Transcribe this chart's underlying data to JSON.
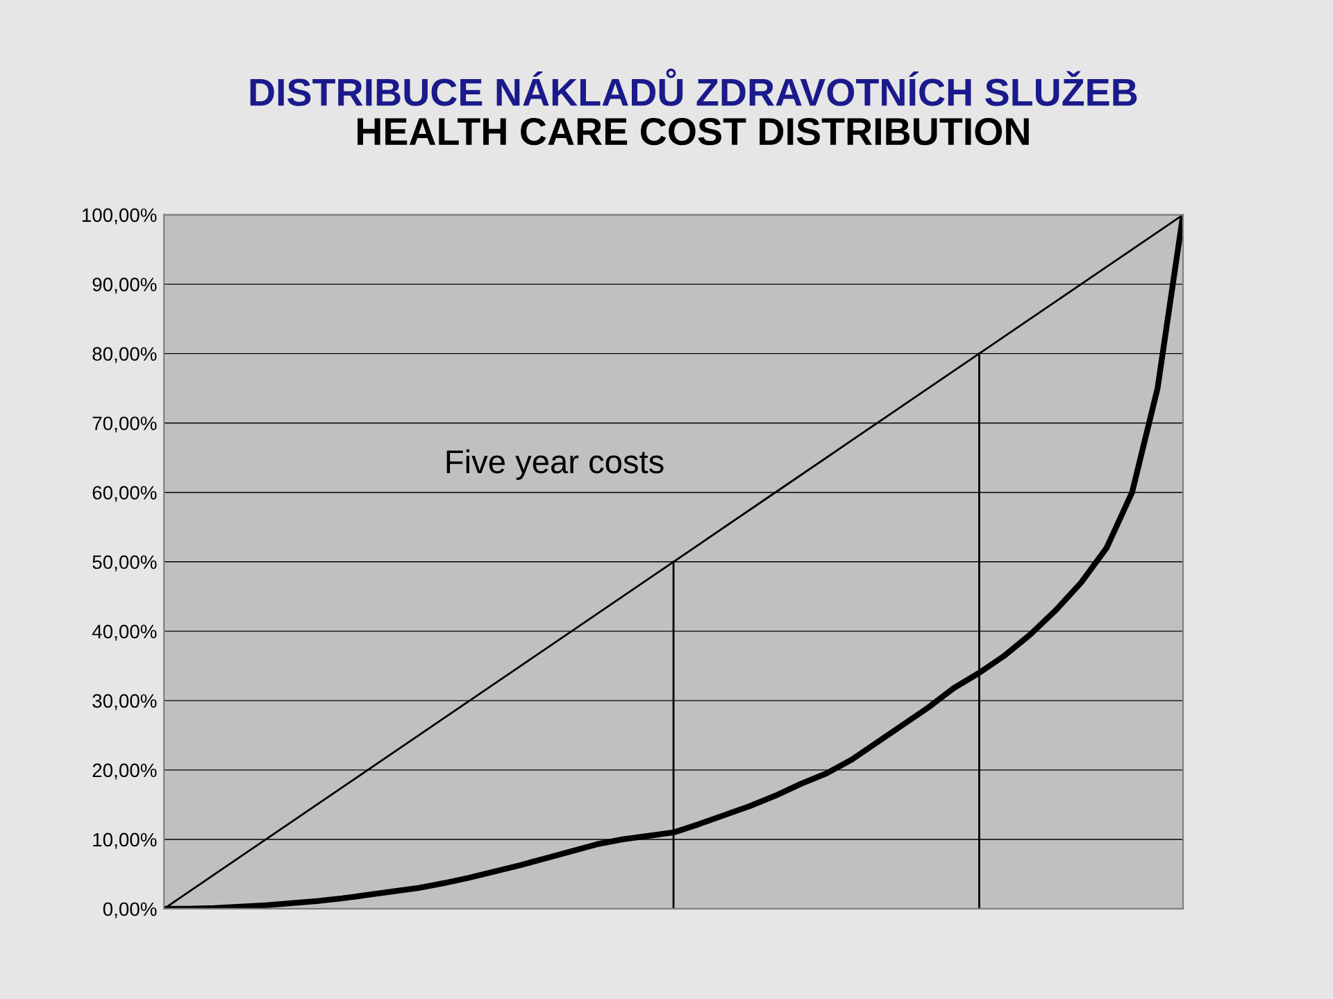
{
  "chart_data": {
    "type": "line",
    "title": "DISTRIBUCE NÁKLADŮ ZDRAVOTNÍCH SLUŽEB",
    "subtitle": "HEALTH CARE COST DISTRIBUTION",
    "annotations": [
      "Five year costs"
    ],
    "categories": [
      null,
      null,
      null,
      null,
      null,
      null,
      null,
      null,
      null,
      null,
      null,
      null,
      null,
      null,
      null,
      null,
      null,
      null,
      null,
      null,
      null,
      null,
      null,
      null,
      null,
      null,
      null,
      null,
      null,
      null,
      null,
      null,
      null,
      null,
      null,
      null,
      null,
      null,
      null,
      null,
      null
    ],
    "ylim": [
      0,
      100
    ],
    "yticks": [
      {
        "value": 0,
        "label": "0,00%"
      },
      {
        "value": 10,
        "label": "10,00%"
      },
      {
        "value": 20,
        "label": "20,00%"
      },
      {
        "value": 30,
        "label": "30,00%"
      },
      {
        "value": 40,
        "label": "40,00%"
      },
      {
        "value": 50,
        "label": "50,00%"
      },
      {
        "value": 60,
        "label": "60,00%"
      },
      {
        "value": 70,
        "label": "70,00%"
      },
      {
        "value": 80,
        "label": "80,00%"
      },
      {
        "value": 90,
        "label": "90,00%"
      },
      {
        "value": 100,
        "label": "100,00%"
      }
    ],
    "grid": "y",
    "series": [
      {
        "color": "#000000",
        "values": [
          0,
          2.5,
          5,
          7.5,
          10,
          12.5,
          15,
          17.5,
          20,
          22.5,
          25,
          27.5,
          30,
          32.5,
          35,
          37.5,
          40,
          42.5,
          45,
          47.5,
          50,
          52.5,
          55,
          57.5,
          60,
          62.5,
          65,
          67.5,
          70,
          72.5,
          75,
          77.5,
          80,
          82.5,
          85,
          87.5,
          90,
          92.5,
          95,
          97.5,
          100
        ]
      },
      {
        "color": "#000000",
        "values": [
          0,
          0,
          0.1,
          0.3,
          0.5,
          0.8,
          1.1,
          1.5,
          2,
          2.5,
          3,
          3.7,
          4.5,
          5.4,
          6.3,
          7.3,
          8.3,
          9.3,
          10,
          10.5,
          11,
          12.2,
          13.5,
          14.8,
          16.3,
          18,
          19.5,
          21.5,
          24,
          26.5,
          29,
          31.8,
          34,
          36.5,
          39.5,
          43,
          47,
          52,
          60,
          75,
          100
        ]
      }
    ]
  }
}
